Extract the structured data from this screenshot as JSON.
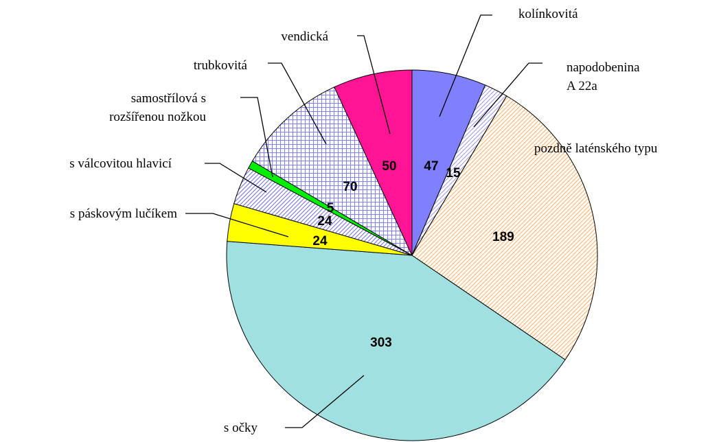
{
  "chart_data": {
    "type": "pie",
    "categories": [
      "kolínkovitá",
      "napodobenina\nA 22a",
      "pozdně laténského typu",
      "s očky",
      "s páskovým lučíkem",
      "s válcovitou hlavicí",
      "samostřílová s\nrozšířenou nožkou",
      "trubkovitá",
      "vendická"
    ],
    "values": [
      47,
      15,
      189,
      303,
      24,
      24,
      5,
      70,
      50
    ],
    "colors": [
      "#8080ff",
      "#9999ee",
      "#ffb060",
      "#a0e0e0",
      "#ffff00",
      "#6f6fe0",
      "#00ee00",
      "#7f7fff",
      "#ff1493"
    ],
    "patterns": [
      "none",
      "diagonal",
      "diagonal",
      "none",
      "none",
      "diagonal",
      "none",
      "grid",
      "none"
    ]
  }
}
